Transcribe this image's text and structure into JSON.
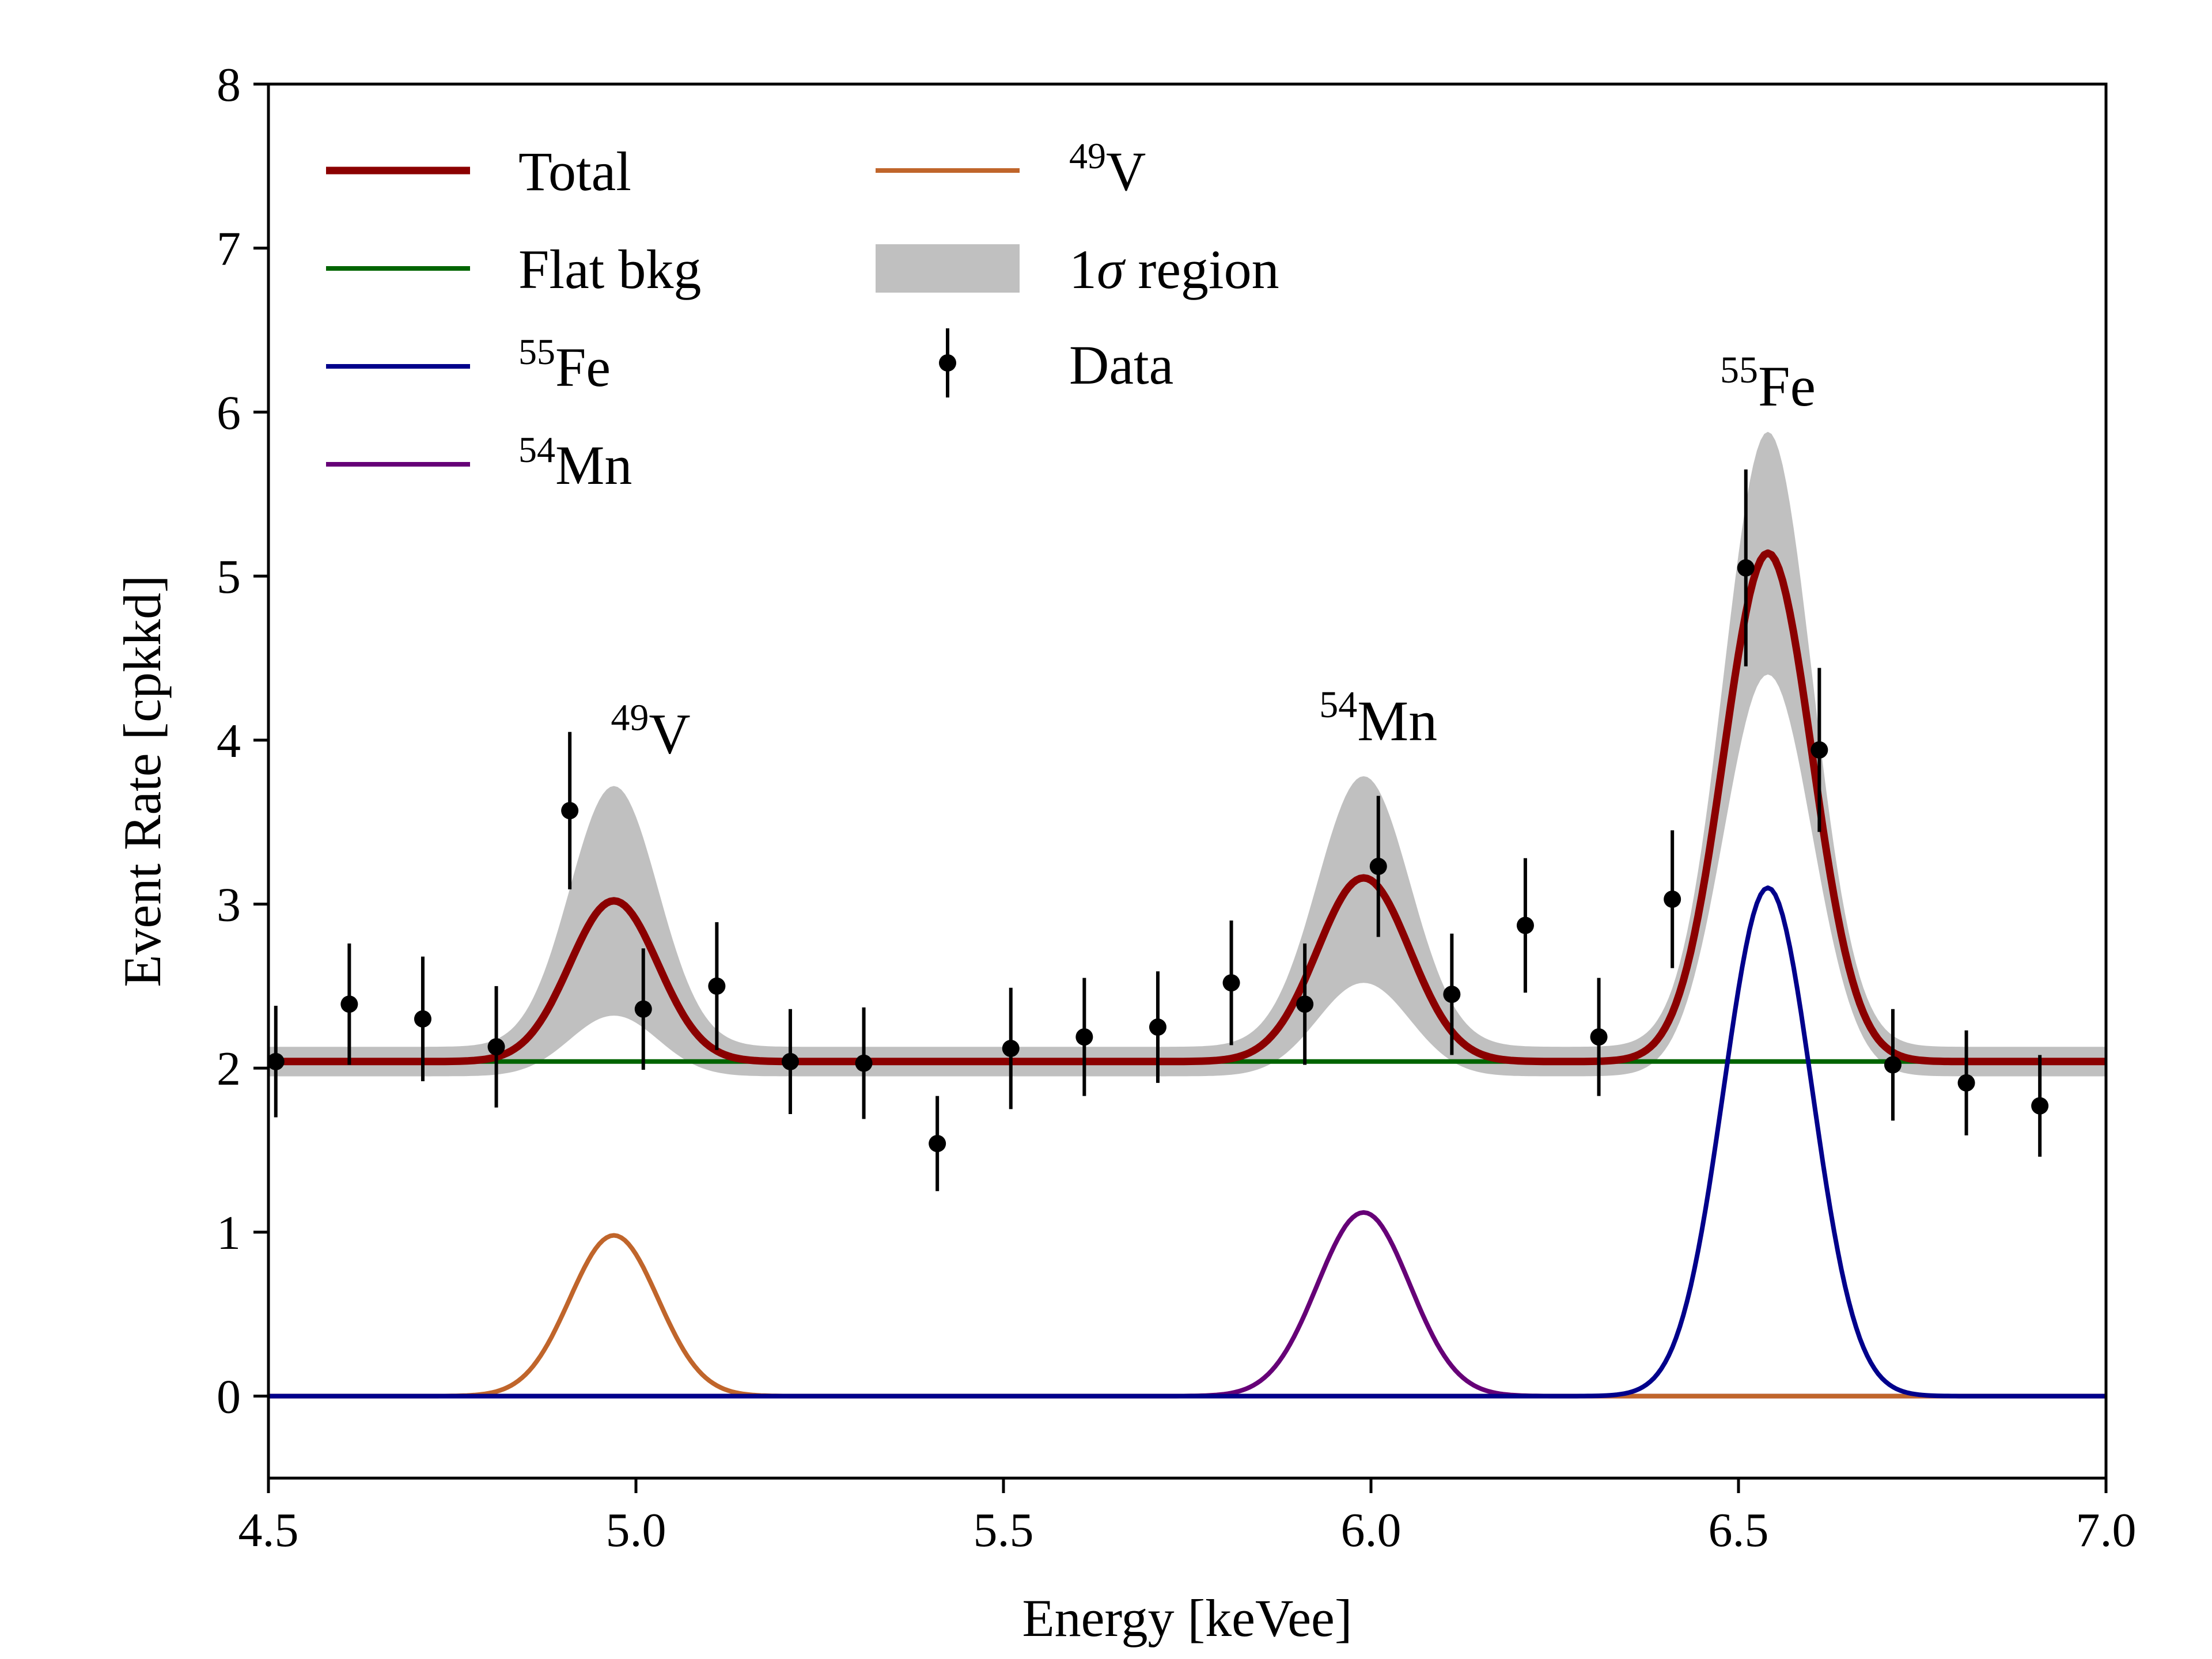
{
  "chart_data": {
    "type": "line",
    "title": "",
    "xlabel": "Energy [keVee]",
    "ylabel": "Event Rate [cpkkd]",
    "xlim": [
      4.5,
      7.0
    ],
    "ylim": [
      -0.5,
      8.0
    ],
    "xticks": [
      4.5,
      5.0,
      5.5,
      6.0,
      6.5,
      7.0
    ],
    "xtick_labels": [
      "4.5",
      "5.0",
      "5.5",
      "6.0",
      "6.5",
      "7.0"
    ],
    "yticks": [
      0,
      1,
      2,
      3,
      4,
      5,
      6,
      7,
      8
    ],
    "ytick_labels": [
      "0",
      "1",
      "2",
      "3",
      "4",
      "5",
      "6",
      "7",
      "8"
    ],
    "grid": false,
    "legend_location": "top-left",
    "model": {
      "flat_bkg": 2.04,
      "peaks": [
        {
          "name": "49V",
          "center": 4.97,
          "sigma": 0.06,
          "amplitude": 0.98,
          "band_upper": 1.68,
          "band_lower": 0.28
        },
        {
          "name": "54Mn",
          "center": 5.99,
          "sigma": 0.063,
          "amplitude": 1.12,
          "band_upper": 1.74,
          "band_lower": 0.48
        },
        {
          "name": "55Fe",
          "center": 6.54,
          "sigma": 0.06,
          "amplitude": 3.1,
          "band_upper": 3.84,
          "band_lower": 2.36
        }
      ],
      "band_base_half_width": 0.09
    },
    "series": [
      {
        "name": "Total",
        "label_main": "Total",
        "label_sup": "",
        "color": "#8b0000",
        "component": "total"
      },
      {
        "name": "Flat bkg",
        "label_main": "Flat bkg",
        "label_sup": "",
        "color": "#006400",
        "component": "flat"
      },
      {
        "name": "55Fe",
        "label_main": "Fe",
        "label_sup": "55",
        "color": "#00008b",
        "component": "55Fe"
      },
      {
        "name": "54Mn",
        "label_main": "Mn",
        "label_sup": "54",
        "color": "#660077",
        "component": "54Mn"
      },
      {
        "name": "49V",
        "label_main": "V",
        "label_sup": "49",
        "color": "#c0652b",
        "component": "49V"
      }
    ],
    "band": {
      "name": "1σ region",
      "label_prefix": "1",
      "label_sigma": "σ",
      "label_suffix": " region",
      "color": "#c0c0c0"
    },
    "data_points": {
      "name": "Data",
      "color": "#000000",
      "x": [
        4.51,
        4.61,
        4.71,
        4.81,
        4.91,
        5.01,
        5.11,
        5.21,
        5.31,
        5.41,
        5.51,
        5.61,
        5.71,
        5.81,
        5.91,
        6.01,
        6.11,
        6.21,
        6.31,
        6.41,
        6.51,
        6.61,
        6.71,
        6.81,
        6.91
      ],
      "y": [
        2.04,
        2.39,
        2.3,
        2.13,
        3.57,
        2.36,
        2.5,
        2.04,
        2.03,
        1.54,
        2.12,
        2.19,
        2.25,
        2.52,
        2.39,
        3.23,
        2.45,
        2.87,
        2.19,
        3.03,
        5.05,
        3.94,
        2.02,
        1.91,
        1.77
      ],
      "yerr": [
        0.34,
        0.37,
        0.38,
        0.37,
        0.48,
        0.37,
        0.39,
        0.32,
        0.34,
        0.29,
        0.37,
        0.36,
        0.34,
        0.38,
        0.37,
        0.43,
        0.37,
        0.41,
        0.36,
        0.42,
        0.6,
        0.5,
        0.34,
        0.32,
        0.31
      ]
    },
    "annotations": [
      {
        "sup": "49",
        "main": "V",
        "x": 5.02,
        "y": 3.92
      },
      {
        "sup": "54",
        "main": "Mn",
        "x": 6.01,
        "y": 4.0
      },
      {
        "sup": "55",
        "main": "Fe",
        "x": 6.54,
        "y": 6.04
      }
    ]
  }
}
